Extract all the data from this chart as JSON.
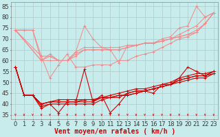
{
  "background_color": "#c8ecec",
  "grid_color": "#b0c8c8",
  "xlabel": "Vent moyen/en rafales ( km/h )",
  "xlim": [
    -0.5,
    23.5
  ],
  "ylim": [
    33,
    87
  ],
  "yticks": [
    35,
    40,
    45,
    50,
    55,
    60,
    65,
    70,
    75,
    80,
    85
  ],
  "xticks": [
    0,
    1,
    2,
    3,
    4,
    5,
    6,
    7,
    8,
    9,
    10,
    11,
    12,
    13,
    14,
    15,
    16,
    17,
    18,
    19,
    20,
    21,
    22,
    23
  ],
  "light_lines": [
    {
      "x": [
        0,
        1,
        2,
        3,
        4,
        5,
        6,
        7,
        8,
        9,
        10,
        11,
        12,
        13,
        14,
        15,
        16,
        17,
        18,
        19,
        20,
        21,
        22,
        23
      ],
      "y": [
        74,
        74,
        74,
        60,
        63,
        60,
        60,
        64,
        76,
        70,
        66,
        65,
        59,
        67,
        67,
        68,
        68,
        70,
        71,
        75,
        76,
        85,
        80,
        82
      ]
    },
    {
      "x": [
        0,
        1,
        2,
        3,
        4,
        5,
        6,
        7,
        8,
        9,
        10,
        11,
        12,
        13,
        14,
        15,
        16,
        17,
        18,
        19,
        20,
        21,
        22,
        23
      ],
      "y": [
        74,
        74,
        74,
        62,
        52,
        58,
        63,
        57,
        57,
        58,
        58,
        58,
        60,
        60,
        62,
        63,
        64,
        66,
        68,
        70,
        71,
        73,
        77,
        82
      ]
    },
    {
      "x": [
        0,
        3,
        4,
        5,
        6,
        7,
        8,
        9,
        10,
        11,
        12,
        13,
        14,
        15,
        16,
        17,
        18,
        19,
        20,
        21,
        22,
        23
      ],
      "y": [
        74,
        62,
        62,
        60,
        60,
        64,
        66,
        66,
        66,
        66,
        66,
        67,
        67,
        68,
        68,
        69,
        70,
        72,
        74,
        76,
        80,
        82
      ]
    },
    {
      "x": [
        0,
        3,
        4,
        5,
        6,
        7,
        8,
        9,
        10,
        11,
        12,
        13,
        14,
        15,
        16,
        17,
        18,
        19,
        20,
        21,
        22,
        23
      ],
      "y": [
        74,
        60,
        62,
        60,
        60,
        62,
        65,
        65,
        65,
        65,
        65,
        66,
        67,
        68,
        68,
        69,
        70,
        71,
        72,
        74,
        77,
        82
      ]
    },
    {
      "x": [
        0,
        3,
        4,
        5,
        6,
        7,
        8,
        9,
        10,
        11,
        12,
        13,
        14,
        15,
        16,
        17,
        18,
        19,
        20,
        21,
        22,
        23
      ],
      "y": [
        74,
        60,
        60,
        60,
        60,
        63,
        65,
        65,
        65,
        65,
        65,
        66,
        67,
        68,
        68,
        69,
        70,
        71,
        72,
        73,
        77,
        82
      ]
    }
  ],
  "dark_lines": [
    {
      "x": [
        0,
        1,
        2,
        3,
        4,
        5,
        6,
        7,
        8,
        9,
        10,
        11,
        12,
        13,
        14,
        15,
        16,
        17,
        18,
        19,
        20,
        21,
        22,
        23
      ],
      "y": [
        57,
        44,
        44,
        38,
        40,
        36,
        41,
        41,
        56,
        41,
        44,
        36,
        40,
        45,
        46,
        46,
        45,
        49,
        49,
        52,
        57,
        55,
        53,
        55
      ]
    },
    {
      "x": [
        0,
        1,
        2,
        3,
        4,
        5,
        6,
        7,
        8,
        9,
        10,
        11,
        12,
        13,
        14,
        15,
        16,
        17,
        18,
        19,
        20,
        21,
        22,
        23
      ],
      "y": [
        57,
        44,
        44,
        40,
        41,
        41,
        41,
        41,
        42,
        42,
        43,
        43,
        44,
        44,
        45,
        46,
        47,
        48,
        49,
        51,
        52,
        53,
        53,
        54
      ]
    },
    {
      "x": [
        0,
        1,
        2,
        3,
        4,
        5,
        6,
        7,
        8,
        9,
        10,
        11,
        12,
        13,
        14,
        15,
        16,
        17,
        18,
        19,
        20,
        21,
        22,
        23
      ],
      "y": [
        57,
        44,
        44,
        40,
        41,
        42,
        42,
        42,
        42,
        42,
        43,
        44,
        45,
        46,
        47,
        47,
        48,
        49,
        50,
        52,
        53,
        54,
        54,
        55
      ]
    },
    {
      "x": [
        0,
        1,
        2,
        3,
        4,
        5,
        6,
        7,
        8,
        9,
        10,
        11,
        12,
        13,
        14,
        15,
        16,
        17,
        18,
        19,
        20,
        21,
        22,
        23
      ],
      "y": [
        57,
        44,
        44,
        39,
        40,
        40,
        40,
        40,
        40,
        40,
        42,
        43,
        43,
        45,
        46,
        46,
        47,
        48,
        49,
        50,
        51,
        52,
        52,
        54
      ]
    },
    {
      "x": [
        0,
        1,
        2,
        3,
        4,
        5,
        6,
        7,
        8,
        9,
        10,
        11,
        12,
        13,
        14,
        15,
        16,
        17,
        18,
        19,
        20,
        21,
        22,
        23
      ],
      "y": [
        57,
        44,
        44,
        40,
        41,
        41,
        41,
        41,
        41,
        41,
        43,
        43,
        44,
        44,
        45,
        46,
        47,
        48,
        49,
        51,
        52,
        53,
        53,
        55
      ]
    }
  ],
  "light_color": "#f08888",
  "dark_color": "#cc0000",
  "arrow_color": "#cc2222",
  "axis_fontsize": 7,
  "tick_fontsize": 6
}
